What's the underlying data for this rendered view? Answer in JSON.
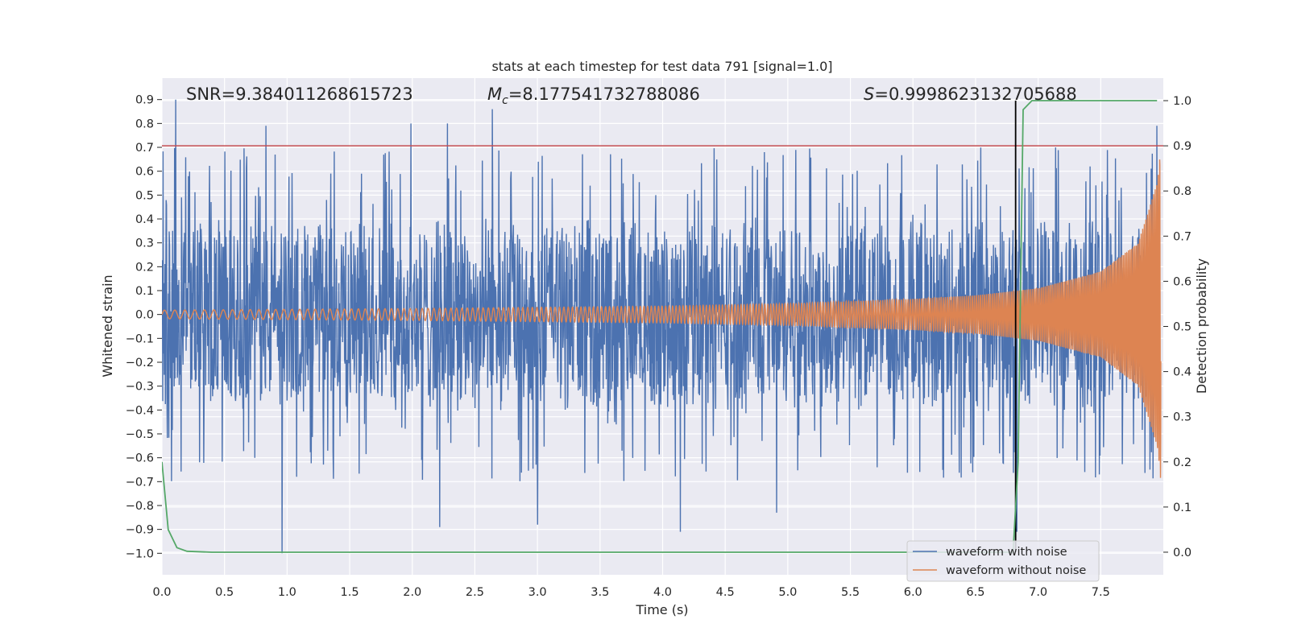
{
  "chart_data": {
    "type": "line",
    "title": "stats at each timestep for test data 791 [signal=1.0]",
    "xlabel": "Time (s)",
    "ylabel": "Whitened strain",
    "y2label": "Detection probability",
    "xlim": [
      0.0,
      8.0
    ],
    "ylim": [
      -1.09,
      0.99
    ],
    "y2lim": [
      -0.05,
      1.05
    ],
    "xticks": [
      0.0,
      0.5,
      1.0,
      1.5,
      2.0,
      2.5,
      3.0,
      3.5,
      4.0,
      4.5,
      5.0,
      5.5,
      6.0,
      6.5,
      7.0,
      7.5
    ],
    "xtick_labels": [
      "0.0",
      "0.5",
      "1.0",
      "1.5",
      "2.0",
      "2.5",
      "3.0",
      "3.5",
      "4.0",
      "4.5",
      "5.0",
      "5.5",
      "6.0",
      "6.5",
      "7.0",
      "7.5"
    ],
    "yticks": [
      0.9,
      0.8,
      0.7,
      0.6,
      0.5,
      0.4,
      0.3,
      0.2,
      0.1,
      0.0,
      -0.1,
      -0.2,
      -0.3,
      -0.4,
      -0.5,
      -0.6,
      -0.7,
      -0.8,
      -0.9,
      -1.0
    ],
    "ytick_labels": [
      "0.9",
      "0.8",
      "0.7",
      "0.6",
      "0.5",
      "0.4",
      "0.3",
      "0.2",
      "0.1",
      "0.0",
      "−0.1",
      "−0.2",
      "−0.3",
      "−0.4",
      "−0.5",
      "−0.6",
      "−0.7",
      "−0.8",
      "−0.9",
      "−1.0"
    ],
    "y2ticks": [
      1.0,
      0.9,
      0.8,
      0.7,
      0.6,
      0.5,
      0.4,
      0.3,
      0.2,
      0.1,
      0.0
    ],
    "y2tick_labels": [
      "1.0",
      "0.9",
      "0.8",
      "0.7",
      "0.6",
      "0.5",
      "0.4",
      "0.3",
      "0.2",
      "0.1",
      "0.0"
    ],
    "annotations": {
      "snr": "SNR=9.384011268615723",
      "mc_symbol": "M",
      "mc_sub": "c",
      "mc_value": "=8.177541732788086",
      "s_symbol": "S",
      "s_value": "=0.9998623132705688"
    },
    "threshold": {
      "y2": 0.9,
      "color": "#c44e52"
    },
    "detection_time": {
      "x": 6.82,
      "color": "#000000"
    },
    "series": [
      {
        "name": "waveform with noise",
        "color": "#4c72b0",
        "description": "noisy whitened strain, roughly uniform amplitude between about -0.6 and 0.6 with spikes up to 0.9 and down to -1.0",
        "spikes": [
          [
            0.11,
            0.9
          ],
          [
            0.96,
            -1.0
          ],
          [
            2.64,
            0.86
          ],
          [
            0.83,
            0.79
          ],
          [
            1.99,
            0.8
          ],
          [
            2.28,
            0.8
          ],
          [
            2.22,
            -0.89
          ],
          [
            3.0,
            -0.88
          ],
          [
            4.14,
            -0.91
          ],
          [
            4.91,
            -0.83
          ],
          [
            6.83,
            -0.91
          ],
          [
            7.95,
            0.79
          ]
        ]
      },
      {
        "name": "waveform without noise",
        "color": "#dd8452",
        "description": "chirp signal, amplitude growing from about 0.02 at t=0 to about 0.7 at t=8",
        "amplitude_points": [
          [
            0.0,
            0.018
          ],
          [
            2.0,
            0.025
          ],
          [
            4.0,
            0.035
          ],
          [
            5.0,
            0.045
          ],
          [
            6.0,
            0.065
          ],
          [
            6.5,
            0.08
          ],
          [
            7.0,
            0.11
          ],
          [
            7.5,
            0.18
          ],
          [
            7.8,
            0.3
          ],
          [
            7.95,
            0.55
          ],
          [
            7.98,
            0.7
          ]
        ]
      },
      {
        "name": "detection probability",
        "color": "#55a868",
        "axis": "y2",
        "points": [
          [
            0.0,
            0.2
          ],
          [
            0.05,
            0.05
          ],
          [
            0.12,
            0.01
          ],
          [
            0.2,
            0.002
          ],
          [
            0.4,
            0.0
          ],
          [
            6.8,
            0.0
          ],
          [
            6.84,
            0.2
          ],
          [
            6.86,
            0.6
          ],
          [
            6.88,
            0.98
          ],
          [
            6.95,
            1.0
          ],
          [
            7.95,
            1.0
          ]
        ]
      }
    ],
    "legend": {
      "placement": "lower-right",
      "entries": [
        {
          "label": "waveform with noise",
          "color": "#4c72b0"
        },
        {
          "label": "waveform without noise",
          "color": "#dd8452"
        }
      ]
    },
    "colors": {
      "background": "#ffffff",
      "plot_background": "#eaeaf2",
      "grid": "#ffffff",
      "text": "#262626"
    }
  }
}
